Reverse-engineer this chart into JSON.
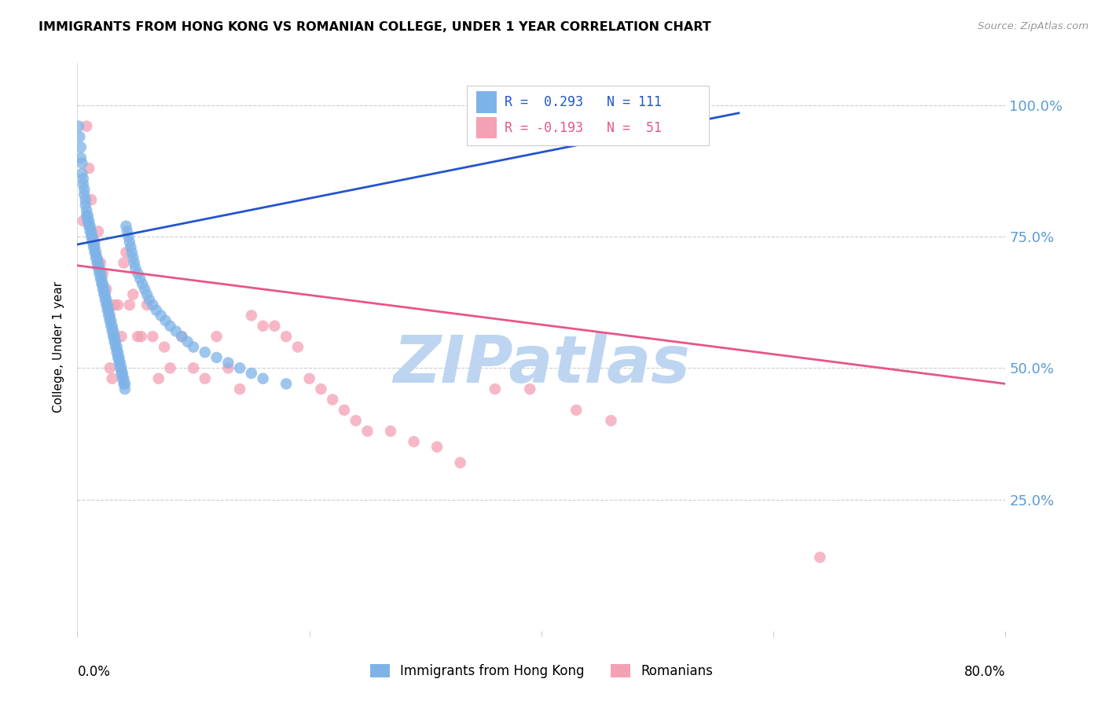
{
  "title": "IMMIGRANTS FROM HONG KONG VS ROMANIAN COLLEGE, UNDER 1 YEAR CORRELATION CHART",
  "source": "Source: ZipAtlas.com",
  "ylabel": "College, Under 1 year",
  "y_ticks": [
    0.0,
    0.25,
    0.5,
    0.75,
    1.0
  ],
  "y_tick_labels": [
    "",
    "25.0%",
    "50.0%",
    "75.0%",
    "100.0%"
  ],
  "x_lim": [
    0.0,
    0.8
  ],
  "y_lim": [
    0.0,
    1.08
  ],
  "legend_hk_label": "Immigrants from Hong Kong",
  "legend_ro_label": "Romanians",
  "legend_r_hk": "R =  0.293   N = 111",
  "legend_r_ro": "R = -0.193   N =  51",
  "hk_color": "#7eb3e8",
  "ro_color": "#f4a0b5",
  "hk_line_color": "#2255cc",
  "ro_line_color": "#e8558a",
  "watermark": "ZIPatlas",
  "watermark_color": "#bdd5f0",
  "hk_x": [
    0.001,
    0.002,
    0.003,
    0.003,
    0.004,
    0.004,
    0.005,
    0.005,
    0.006,
    0.006,
    0.007,
    0.007,
    0.008,
    0.008,
    0.009,
    0.009,
    0.01,
    0.01,
    0.011,
    0.011,
    0.012,
    0.012,
    0.013,
    0.013,
    0.014,
    0.014,
    0.015,
    0.015,
    0.016,
    0.016,
    0.017,
    0.017,
    0.018,
    0.018,
    0.019,
    0.019,
    0.02,
    0.02,
    0.021,
    0.021,
    0.022,
    0.022,
    0.023,
    0.023,
    0.024,
    0.024,
    0.025,
    0.025,
    0.026,
    0.026,
    0.027,
    0.027,
    0.028,
    0.028,
    0.029,
    0.029,
    0.03,
    0.03,
    0.031,
    0.031,
    0.032,
    0.032,
    0.033,
    0.033,
    0.034,
    0.034,
    0.035,
    0.035,
    0.036,
    0.036,
    0.037,
    0.037,
    0.038,
    0.038,
    0.039,
    0.039,
    0.04,
    0.04,
    0.041,
    0.041,
    0.042,
    0.043,
    0.044,
    0.045,
    0.046,
    0.047,
    0.048,
    0.049,
    0.05,
    0.052,
    0.054,
    0.056,
    0.058,
    0.06,
    0.062,
    0.065,
    0.068,
    0.072,
    0.076,
    0.08,
    0.085,
    0.09,
    0.095,
    0.1,
    0.11,
    0.12,
    0.13,
    0.14,
    0.15,
    0.16,
    0.18
  ],
  "hk_y": [
    0.96,
    0.94,
    0.92,
    0.9,
    0.89,
    0.87,
    0.86,
    0.85,
    0.84,
    0.83,
    0.82,
    0.81,
    0.8,
    0.79,
    0.79,
    0.78,
    0.78,
    0.77,
    0.77,
    0.76,
    0.76,
    0.75,
    0.75,
    0.74,
    0.74,
    0.73,
    0.73,
    0.72,
    0.72,
    0.71,
    0.71,
    0.7,
    0.7,
    0.69,
    0.69,
    0.68,
    0.68,
    0.67,
    0.67,
    0.66,
    0.66,
    0.65,
    0.65,
    0.64,
    0.64,
    0.63,
    0.63,
    0.62,
    0.62,
    0.61,
    0.61,
    0.6,
    0.6,
    0.59,
    0.59,
    0.58,
    0.58,
    0.57,
    0.57,
    0.56,
    0.56,
    0.55,
    0.55,
    0.54,
    0.54,
    0.53,
    0.53,
    0.52,
    0.52,
    0.51,
    0.51,
    0.5,
    0.5,
    0.49,
    0.49,
    0.48,
    0.48,
    0.47,
    0.47,
    0.46,
    0.77,
    0.76,
    0.75,
    0.74,
    0.73,
    0.72,
    0.71,
    0.7,
    0.69,
    0.68,
    0.67,
    0.66,
    0.65,
    0.64,
    0.63,
    0.62,
    0.61,
    0.6,
    0.59,
    0.58,
    0.57,
    0.56,
    0.55,
    0.54,
    0.53,
    0.52,
    0.51,
    0.5,
    0.49,
    0.48,
    0.47
  ],
  "ro_x": [
    0.005,
    0.008,
    0.01,
    0.012,
    0.015,
    0.018,
    0.02,
    0.022,
    0.025,
    0.028,
    0.03,
    0.032,
    0.035,
    0.038,
    0.04,
    0.042,
    0.045,
    0.048,
    0.052,
    0.055,
    0.06,
    0.065,
    0.07,
    0.075,
    0.08,
    0.09,
    0.1,
    0.11,
    0.12,
    0.13,
    0.14,
    0.15,
    0.16,
    0.17,
    0.18,
    0.19,
    0.2,
    0.21,
    0.22,
    0.23,
    0.24,
    0.25,
    0.27,
    0.29,
    0.31,
    0.33,
    0.36,
    0.39,
    0.43,
    0.46,
    0.64
  ],
  "ro_y": [
    0.78,
    0.96,
    0.88,
    0.82,
    0.74,
    0.76,
    0.7,
    0.68,
    0.65,
    0.5,
    0.48,
    0.62,
    0.62,
    0.56,
    0.7,
    0.72,
    0.62,
    0.64,
    0.56,
    0.56,
    0.62,
    0.56,
    0.48,
    0.54,
    0.5,
    0.56,
    0.5,
    0.48,
    0.56,
    0.5,
    0.46,
    0.6,
    0.58,
    0.58,
    0.56,
    0.54,
    0.48,
    0.46,
    0.44,
    0.42,
    0.4,
    0.38,
    0.38,
    0.36,
    0.35,
    0.32,
    0.46,
    0.46,
    0.42,
    0.4,
    0.14
  ],
  "hk_line_x": [
    0.0,
    0.57
  ],
  "hk_line_y": [
    0.735,
    0.985
  ],
  "ro_line_x": [
    0.0,
    0.8
  ],
  "ro_line_y": [
    0.695,
    0.47
  ]
}
